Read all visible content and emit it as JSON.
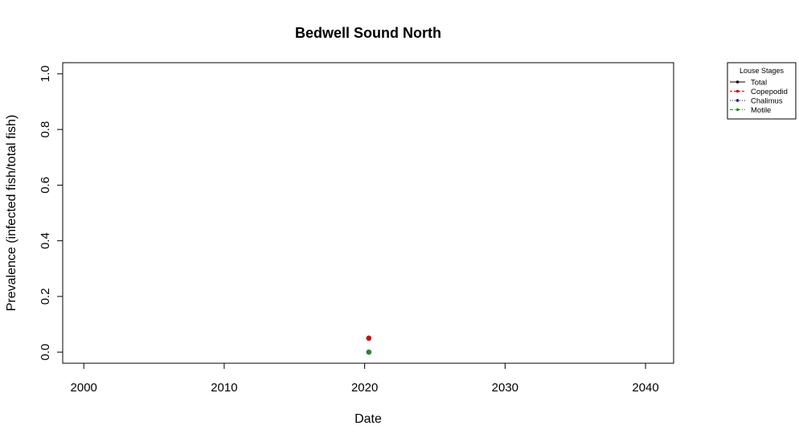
{
  "chart_data": {
    "type": "scatter",
    "title": "Bedwell Sound North",
    "xlabel": "Date",
    "ylabel": "Prevalence (infected fish/total fish)",
    "xlim": [
      1998.5,
      2042
    ],
    "ylim": [
      -0.04,
      1.04
    ],
    "x_ticks": [
      2000,
      2010,
      2020,
      2030,
      2040
    ],
    "y_ticks": [
      0.0,
      0.2,
      0.4,
      0.6,
      0.8,
      1.0
    ],
    "x_tick_labels": [
      "2000",
      "2010",
      "2020",
      "2030",
      "2040"
    ],
    "y_tick_labels": [
      "0.0",
      "0.2",
      "0.4",
      "0.6",
      "0.8",
      "1.0"
    ],
    "grid": false,
    "legend": {
      "title": "Louse Stages",
      "position": "outside-top-right"
    },
    "series": [
      {
        "name": "Total",
        "color": "#000000",
        "line": "solid",
        "x": [
          2020.3
        ],
        "y": [
          0.05
        ]
      },
      {
        "name": "Copepodid",
        "color": "#dd0000",
        "line": "dashed",
        "x": [
          2020.3
        ],
        "y": [
          0.05
        ]
      },
      {
        "name": "Chalimus",
        "color": "#00008b",
        "line": "dotted",
        "x": [
          2020.3
        ],
        "y": [
          0.0
        ]
      },
      {
        "name": "Motile",
        "color": "#228b22",
        "line": "dashdot",
        "x": [
          2020.3
        ],
        "y": [
          0.0
        ]
      }
    ]
  }
}
